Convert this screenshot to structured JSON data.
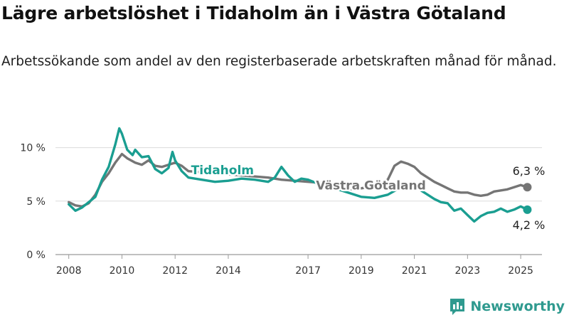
{
  "header": {
    "title": "Lägre arbetslöshet i Tidaholm än i Västra Götaland",
    "subtitle": "Arbetssökande som andel av den registerbaserade arbetskraften månad för månad."
  },
  "brand": {
    "name": "Newsworthy",
    "color": "#2f9a8f"
  },
  "chart_data": {
    "type": "line",
    "title": "Lägre arbetslöshet i Tidaholm än i Västra Götaland",
    "subtitle": "Arbetssökande som andel av den registerbaserade arbetskraften månad för månad.",
    "xlim": [
      2007.5,
      2025.8
    ],
    "ylim": [
      0,
      12.5
    ],
    "y_ticks": [
      0,
      5,
      10
    ],
    "y_tick_labels": [
      "0 %",
      "5 %",
      "10 %"
    ],
    "x_ticks": [
      2008,
      2010,
      2012,
      2014,
      2017,
      2019,
      2021,
      2023,
      2025
    ],
    "x_tick_labels": [
      "2008",
      "2010",
      "2012",
      "2014",
      "2017",
      "2019",
      "2021",
      "2023",
      "2025"
    ],
    "grid": true,
    "series": [
      {
        "name": "Västra Götaland",
        "color": "#757575",
        "label_pos": [
          2017.3,
          6.1
        ],
        "end_label": "6,3 %",
        "x": [
          2008.0,
          2008.25,
          2008.5,
          2008.75,
          2009.0,
          2009.25,
          2009.5,
          2009.75,
          2010.0,
          2010.2,
          2010.5,
          2010.75,
          2011.0,
          2011.25,
          2011.5,
          2011.75,
          2012.0,
          2012.25,
          2012.5,
          2013.0,
          2013.5,
          2014.0,
          2014.5,
          2015.0,
          2015.5,
          2016.0,
          2016.5,
          2017.0,
          2017.5,
          2018.0,
          2018.5,
          2019.0,
          2019.5,
          2020.0,
          2020.25,
          2020.5,
          2020.75,
          2021.0,
          2021.25,
          2021.5,
          2021.75,
          2022.0,
          2022.25,
          2022.5,
          2022.75,
          2023.0,
          2023.25,
          2023.5,
          2023.75,
          2024.0,
          2024.25,
          2024.5,
          2024.75,
          2025.0,
          2025.25
        ],
        "values": [
          4.9,
          4.6,
          4.5,
          4.8,
          5.6,
          6.8,
          7.6,
          8.6,
          9.4,
          9.0,
          8.6,
          8.4,
          8.8,
          8.3,
          8.2,
          8.4,
          8.6,
          8.3,
          7.8,
          7.7,
          7.6,
          7.5,
          7.4,
          7.3,
          7.2,
          7.0,
          6.9,
          6.8,
          6.7,
          6.3,
          6.1,
          6.2,
          6.4,
          7.0,
          8.3,
          8.7,
          8.5,
          8.2,
          7.6,
          7.2,
          6.8,
          6.5,
          6.2,
          5.9,
          5.8,
          5.8,
          5.6,
          5.5,
          5.6,
          5.9,
          6.0,
          6.1,
          6.3,
          6.5,
          6.3
        ]
      },
      {
        "name": "Tidaholm",
        "color": "#1a9e91",
        "label_pos": [
          2012.6,
          7.5
        ],
        "end_label": "4,2 %",
        "x": [
          2008.0,
          2008.25,
          2008.5,
          2008.75,
          2009.0,
          2009.25,
          2009.5,
          2009.75,
          2009.9,
          2010.0,
          2010.2,
          2010.4,
          2010.5,
          2010.75,
          2011.0,
          2011.25,
          2011.5,
          2011.75,
          2011.9,
          2012.0,
          2012.25,
          2012.5,
          2013.0,
          2013.5,
          2014.0,
          2014.5,
          2015.0,
          2015.5,
          2015.75,
          2016.0,
          2016.25,
          2016.5,
          2016.75,
          2017.0,
          2017.5,
          2018.0,
          2018.5,
          2019.0,
          2019.5,
          2020.0,
          2020.5,
          2020.75,
          2021.0,
          2021.25,
          2021.5,
          2021.75,
          2022.0,
          2022.25,
          2022.5,
          2022.75,
          2023.0,
          2023.25,
          2023.5,
          2023.75,
          2024.0,
          2024.25,
          2024.5,
          2024.75,
          2025.0,
          2025.25
        ],
        "values": [
          4.7,
          4.1,
          4.4,
          4.9,
          5.4,
          7.0,
          8.2,
          10.3,
          11.8,
          11.3,
          9.8,
          9.3,
          9.8,
          9.1,
          9.2,
          8.0,
          7.6,
          8.1,
          9.6,
          8.8,
          7.8,
          7.2,
          7.0,
          6.8,
          6.9,
          7.1,
          7.0,
          6.8,
          7.2,
          8.2,
          7.4,
          6.8,
          7.1,
          7.0,
          6.5,
          6.2,
          5.8,
          5.4,
          5.3,
          5.6,
          6.3,
          6.6,
          6.5,
          6.0,
          5.6,
          5.2,
          4.9,
          4.8,
          4.1,
          4.3,
          3.7,
          3.1,
          3.6,
          3.9,
          4.0,
          4.3,
          4.0,
          4.2,
          4.5,
          4.2
        ]
      }
    ]
  }
}
